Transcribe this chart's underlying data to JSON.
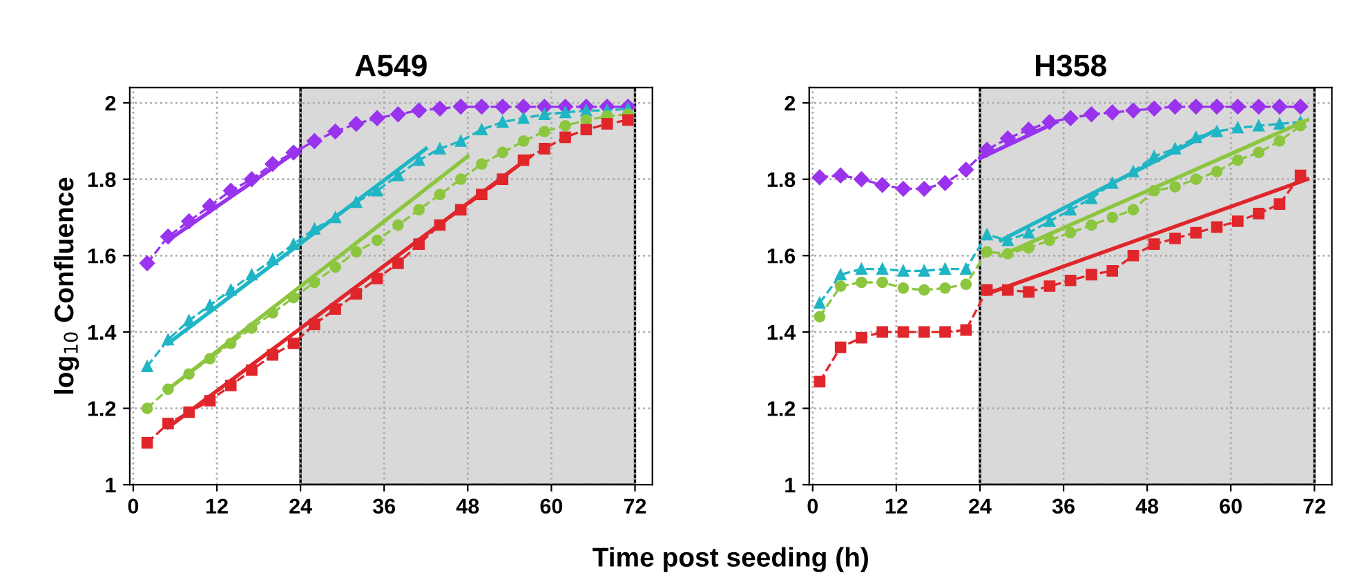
{
  "chart_data": [
    {
      "type": "line",
      "title": "A549",
      "ylabel": "log$_{10}$ Confluence",
      "xlabel": "Time post seeding (h)",
      "xlim": [
        -0.5,
        74.5
      ],
      "ylim": [
        1,
        2.04
      ],
      "xticks": [
        0,
        12,
        24,
        36,
        48,
        60,
        72
      ],
      "yticks": [
        1,
        1.2,
        1.4,
        1.6,
        1.8,
        2
      ],
      "grid": true,
      "line_style": "dashed",
      "bands": [
        {
          "axis": "x",
          "from": 24,
          "to": 72,
          "color": "#d9d9d9"
        }
      ],
      "x": [
        2,
        5,
        8,
        11,
        14,
        17,
        20,
        23,
        26,
        29,
        32,
        35,
        38,
        41,
        44,
        47,
        50,
        53,
        56,
        59,
        62,
        65,
        68,
        71
      ],
      "series": [
        {
          "color": "#9933ee",
          "marker": "diamond",
          "values": [
            1.58,
            1.65,
            1.69,
            1.73,
            1.77,
            1.8,
            1.84,
            1.87,
            1.9,
            1.925,
            1.945,
            1.96,
            1.97,
            1.98,
            1.985,
            1.99,
            1.99,
            1.99,
            1.99,
            1.99,
            1.99,
            1.99,
            1.99,
            1.99
          ]
        },
        {
          "color": "#1fb5c4",
          "marker": "triangle",
          "values": [
            1.31,
            1.38,
            1.43,
            1.47,
            1.51,
            1.55,
            1.59,
            1.63,
            1.67,
            1.7,
            1.74,
            1.77,
            1.81,
            1.85,
            1.88,
            1.9,
            1.93,
            1.95,
            1.96,
            1.97,
            1.975,
            1.98,
            1.98,
            1.985
          ]
        },
        {
          "color": "#8cc63f",
          "marker": "circle",
          "values": [
            1.2,
            1.25,
            1.29,
            1.33,
            1.37,
            1.41,
            1.45,
            1.49,
            1.53,
            1.57,
            1.61,
            1.64,
            1.68,
            1.72,
            1.76,
            1.8,
            1.84,
            1.87,
            1.9,
            1.925,
            1.94,
            1.955,
            1.965,
            1.97
          ]
        },
        {
          "color": "#e0262b",
          "marker": "square",
          "values": [
            1.11,
            1.16,
            1.19,
            1.22,
            1.26,
            1.3,
            1.34,
            1.37,
            1.42,
            1.46,
            1.5,
            1.54,
            1.58,
            1.63,
            1.68,
            1.72,
            1.76,
            1.8,
            1.85,
            1.88,
            1.91,
            1.93,
            1.945,
            1.955
          ]
        },
        {
          "color": "#9933ee",
          "marker": "none",
          "line_style": "solid",
          "x": [
            5,
            24
          ],
          "values": [
            1.64,
            1.88
          ]
        },
        {
          "color": "#1fb5c4",
          "marker": "none",
          "line_style": "solid",
          "x": [
            5,
            42
          ],
          "values": [
            1.37,
            1.88
          ]
        },
        {
          "color": "#8cc63f",
          "marker": "none",
          "line_style": "solid",
          "x": [
            5,
            48
          ],
          "values": [
            1.25,
            1.86
          ]
        },
        {
          "color": "#e0262b",
          "marker": "none",
          "line_style": "solid",
          "x": [
            5,
            57
          ],
          "values": [
            1.15,
            1.86
          ]
        }
      ]
    },
    {
      "type": "line",
      "title": "H358",
      "xlim": [
        -0.5,
        74.5
      ],
      "ylim": [
        1,
        2.04
      ],
      "xticks": [
        0,
        12,
        24,
        36,
        48,
        60,
        72
      ],
      "yticks": [
        1,
        1.2,
        1.4,
        1.6,
        1.8,
        2
      ],
      "grid": true,
      "line_style": "dashed",
      "bands": [
        {
          "axis": "x",
          "from": 24,
          "to": 72,
          "color": "#d9d9d9"
        }
      ],
      "x": [
        1,
        4,
        7,
        10,
        13,
        16,
        19,
        22,
        25,
        28,
        31,
        34,
        37,
        40,
        43,
        46,
        49,
        52,
        55,
        58,
        61,
        64,
        67,
        70
      ],
      "series": [
        {
          "color": "#9933ee",
          "marker": "diamond",
          "values": [
            1.805,
            1.81,
            1.8,
            1.785,
            1.775,
            1.775,
            1.79,
            1.825,
            1.877,
            1.907,
            1.93,
            1.95,
            1.96,
            1.97,
            1.975,
            1.98,
            1.985,
            1.99,
            1.99,
            1.99,
            1.99,
            1.99,
            1.99,
            1.99
          ]
        },
        {
          "color": "#1fb5c4",
          "marker": "triangle",
          "values": [
            1.476,
            1.55,
            1.565,
            1.565,
            1.56,
            1.56,
            1.565,
            1.565,
            1.655,
            1.64,
            1.66,
            1.69,
            1.72,
            1.75,
            1.79,
            1.82,
            1.86,
            1.88,
            1.91,
            1.925,
            1.935,
            1.94,
            1.945,
            1.95
          ]
        },
        {
          "color": "#8cc63f",
          "marker": "circle",
          "values": [
            1.44,
            1.52,
            1.53,
            1.53,
            1.515,
            1.51,
            1.515,
            1.525,
            1.61,
            1.605,
            1.62,
            1.64,
            1.66,
            1.68,
            1.7,
            1.72,
            1.77,
            1.78,
            1.8,
            1.82,
            1.85,
            1.87,
            1.9,
            1.94
          ]
        },
        {
          "color": "#e0262b",
          "marker": "square",
          "values": [
            1.27,
            1.36,
            1.385,
            1.4,
            1.4,
            1.4,
            1.4,
            1.405,
            1.51,
            1.51,
            1.505,
            1.52,
            1.535,
            1.55,
            1.56,
            1.6,
            1.63,
            1.645,
            1.66,
            1.675,
            1.69,
            1.71,
            1.735,
            1.81
          ]
        },
        {
          "color": "#9933ee",
          "marker": "none",
          "line_style": "solid",
          "x": [
            24,
            35
          ],
          "values": [
            1.855,
            1.95
          ]
        },
        {
          "color": "#1fb5c4",
          "marker": "none",
          "line_style": "solid",
          "x": [
            27,
            58
          ],
          "values": [
            1.64,
            1.93
          ]
        },
        {
          "color": "#8cc63f",
          "marker": "none",
          "line_style": "solid",
          "x": [
            27,
            71
          ],
          "values": [
            1.6,
            1.955
          ]
        },
        {
          "color": "#e0262b",
          "marker": "none",
          "line_style": "solid",
          "x": [
            25,
            71
          ],
          "values": [
            1.5,
            1.8
          ]
        }
      ]
    }
  ]
}
